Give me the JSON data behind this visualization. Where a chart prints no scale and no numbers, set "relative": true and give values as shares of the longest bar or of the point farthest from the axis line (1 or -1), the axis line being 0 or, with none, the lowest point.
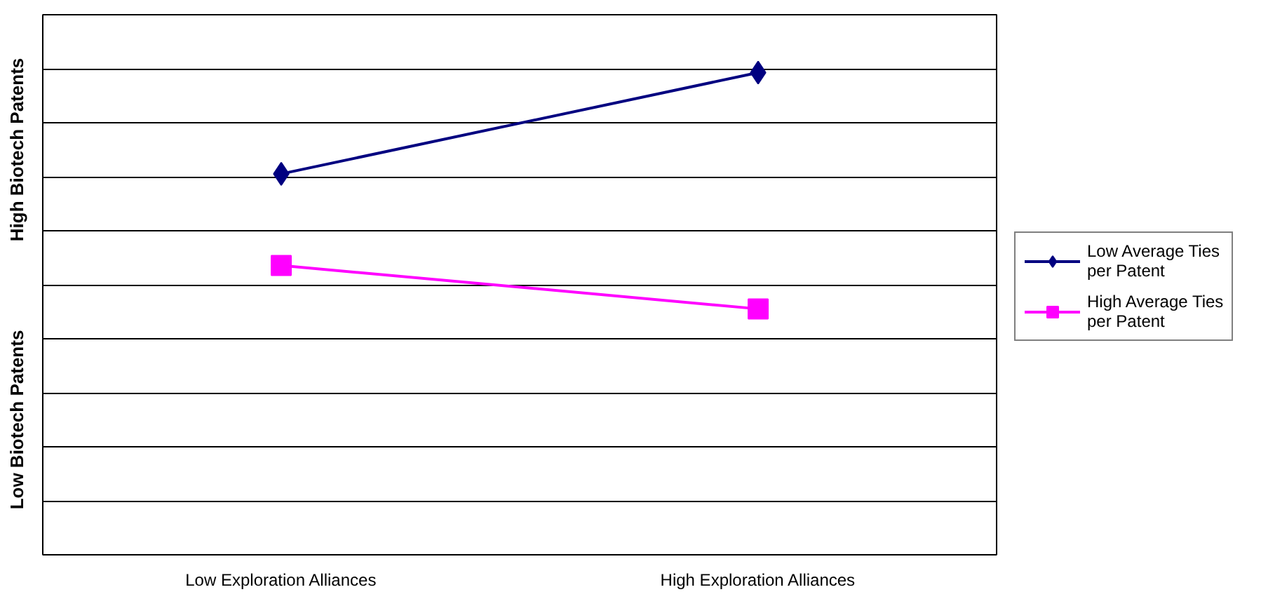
{
  "chart_data": {
    "type": "line",
    "relative": true,
    "categories": [
      "Low Exploration Alliances",
      "High Exploration Alliances"
    ],
    "series": [
      {
        "name": "Low Average Ties per Patent",
        "color": "#000080",
        "marker": "diamond",
        "values": [
          0.79,
          1
        ]
      },
      {
        "name": "High Average Ties per Patent",
        "color": "#ff00ff",
        "marker": "square",
        "values": [
          0.6,
          0.51
        ]
      }
    ],
    "annotations": [
      "High Biotech Patents",
      "Low Biotech Patents"
    ],
    "grid": "y",
    "legend": "right",
    "line_style": "solid"
  }
}
